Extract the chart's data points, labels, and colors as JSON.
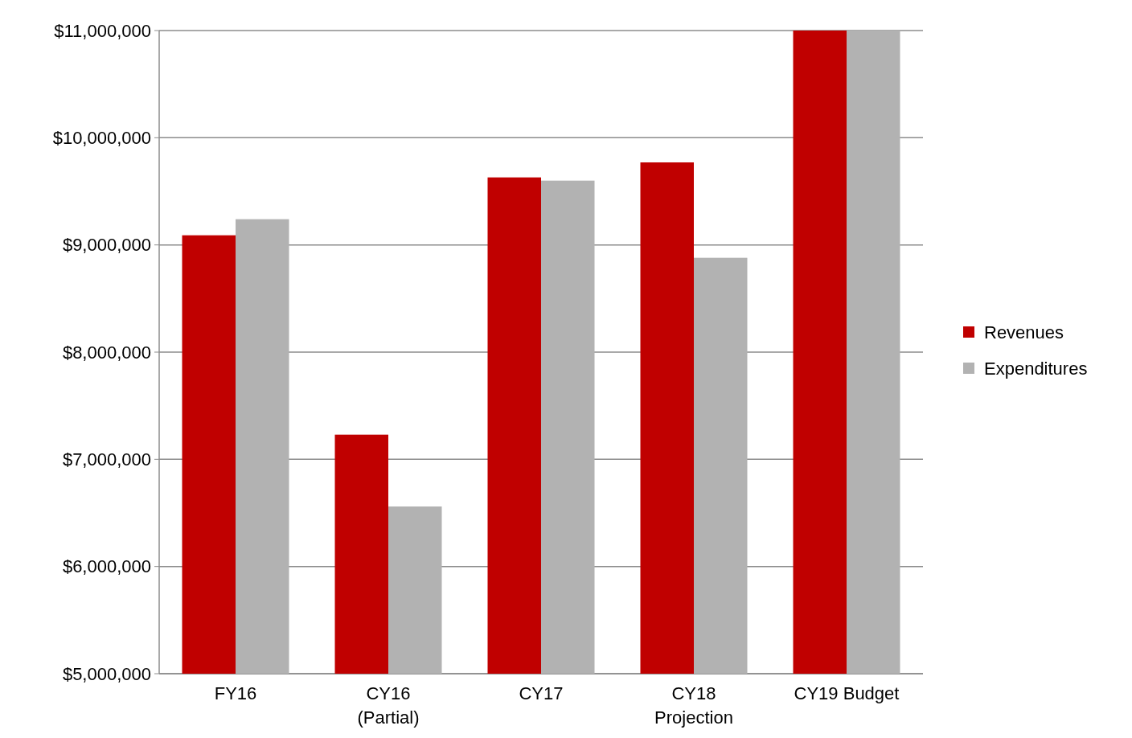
{
  "chart_data": {
    "type": "bar",
    "categories": [
      "FY16",
      "CY16\n(Partial)",
      "CY17",
      "CY18\nProjection",
      "CY19 Budget"
    ],
    "series": [
      {
        "name": "Revenues",
        "color": "#c00000",
        "values": [
          9090000,
          7230000,
          9630000,
          9770000,
          11000000
        ]
      },
      {
        "name": "Expenditures",
        "color": "#b2b2b2",
        "values": [
          9240000,
          6560000,
          9600000,
          8880000,
          11000000
        ]
      }
    ],
    "ylim": [
      5000000,
      11000000
    ],
    "yticks": [
      {
        "value": 5000000,
        "label": "$5,000,000"
      },
      {
        "value": 6000000,
        "label": "$6,000,000"
      },
      {
        "value": 7000000,
        "label": "$7,000,000"
      },
      {
        "value": 8000000,
        "label": "$8,000,000"
      },
      {
        "value": 9000000,
        "label": "$9,000,000"
      },
      {
        "value": 10000000,
        "label": "$10,000,000"
      },
      {
        "value": 11000000,
        "label": "$11,000,000"
      }
    ],
    "grid": "y",
    "legend": "right"
  }
}
